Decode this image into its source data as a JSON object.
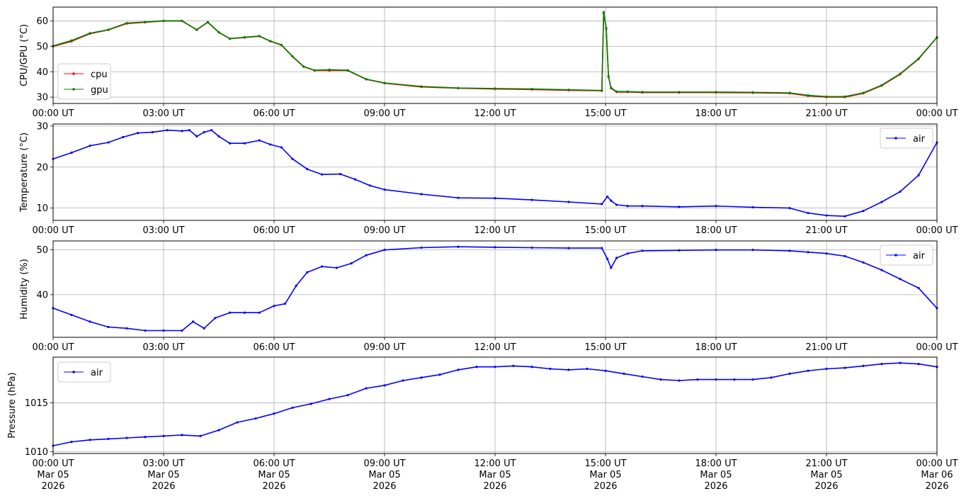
{
  "chart_data": [
    {
      "type": "line",
      "ylabel": "CPU/GPU (°C)",
      "ylim": [
        27.5,
        65.5
      ],
      "yticks": [
        30,
        40,
        50,
        60
      ],
      "x_tick_labels": [
        "00:00 UT",
        "03:00 UT",
        "06:00 UT",
        "09:00 UT",
        "12:00 UT",
        "15:00 UT",
        "18:00 UT",
        "21:00 UT",
        "00:00 UT"
      ],
      "grid": true,
      "legend_placement": "lower-left",
      "series": [
        {
          "name": "cpu",
          "color": "#ff0000",
          "x": [
            0,
            0.5,
            1,
            1.5,
            2,
            2.5,
            3,
            3.5,
            3.9,
            4.2,
            4.5,
            4.8,
            5.2,
            5.6,
            5.9,
            6.2,
            6.5,
            6.8,
            7.1,
            7.5,
            8,
            8.5,
            9,
            10,
            11,
            12,
            13,
            14,
            14.9,
            14.95,
            15.02,
            15.08,
            15.15,
            15.3,
            15.6,
            16,
            17,
            18,
            19,
            20,
            20.5,
            21,
            21.5,
            22,
            22.5,
            23,
            23.5,
            24
          ],
          "values": [
            50,
            52,
            55,
            56.5,
            59,
            59.5,
            60,
            60,
            56.5,
            59.5,
            55.5,
            53,
            53.5,
            54,
            52,
            50.5,
            46,
            42,
            40.5,
            40.5,
            40.5,
            37,
            35.5,
            34,
            33.5,
            33.2,
            33,
            32.7,
            32.5,
            63,
            57,
            38,
            33.5,
            32,
            32,
            31.8,
            31.8,
            31.8,
            31.7,
            31.5,
            30.5,
            30,
            30,
            31.5,
            34.5,
            39,
            45,
            53.5
          ]
        },
        {
          "name": "gpu",
          "color": "#008000",
          "x": [
            0,
            0.5,
            1,
            1.5,
            2,
            2.5,
            3,
            3.5,
            3.9,
            4.2,
            4.5,
            4.8,
            5.2,
            5.6,
            5.9,
            6.2,
            6.5,
            6.8,
            7.1,
            7.5,
            8,
            8.5,
            9,
            10,
            11,
            12,
            13,
            14,
            14.9,
            14.95,
            15.02,
            15.08,
            15.15,
            15.3,
            15.6,
            16,
            17,
            18,
            19,
            20,
            20.5,
            21,
            21.5,
            22,
            22.5,
            23,
            23.5,
            24
          ],
          "values": [
            50.2,
            52.3,
            55.2,
            56.6,
            59.2,
            59.6,
            60.1,
            60.1,
            56.6,
            59.6,
            55.6,
            53.1,
            53.6,
            54.1,
            52.1,
            50.6,
            46.1,
            42.1,
            40.6,
            40.8,
            40.6,
            37.1,
            35.6,
            34.2,
            33.6,
            33.4,
            33.2,
            32.9,
            32.6,
            63.5,
            57.2,
            38.2,
            33.7,
            32.2,
            32.2,
            32,
            32,
            32,
            31.9,
            31.7,
            30.7,
            30.2,
            30.2,
            31.7,
            34.7,
            39.2,
            45.2,
            53.6
          ]
        }
      ]
    },
    {
      "type": "line",
      "ylabel": "Temperature (°C)",
      "ylim": [
        7,
        30.5
      ],
      "yticks": [
        10,
        20,
        30
      ],
      "x_tick_labels": [
        "00:00 UT",
        "03:00 UT",
        "06:00 UT",
        "09:00 UT",
        "12:00 UT",
        "15:00 UT",
        "18:00 UT",
        "21:00 UT",
        "00:00 UT"
      ],
      "grid": true,
      "legend_placement": "upper-right",
      "series": [
        {
          "name": "air",
          "color": "#0000ff",
          "x": [
            0,
            0.5,
            1,
            1.5,
            1.9,
            2.3,
            2.7,
            3.1,
            3.5,
            3.7,
            3.9,
            4.1,
            4.3,
            4.5,
            4.8,
            5.2,
            5.6,
            5.9,
            6.2,
            6.5,
            6.9,
            7.3,
            7.8,
            8.2,
            8.6,
            9,
            10,
            11,
            12,
            13,
            14,
            14.9,
            15.05,
            15.15,
            15.3,
            15.6,
            16,
            17,
            18,
            19,
            20,
            20.5,
            21,
            21.5,
            22,
            22.5,
            23,
            23.5,
            24
          ],
          "values": [
            22,
            23.5,
            25.2,
            26,
            27.3,
            28.3,
            28.5,
            29,
            28.8,
            29,
            27.5,
            28.5,
            29,
            27.5,
            25.8,
            25.8,
            26.5,
            25.5,
            24.8,
            22,
            19.5,
            18.2,
            18.3,
            17,
            15.5,
            14.5,
            13.4,
            12.5,
            12.4,
            12,
            11.5,
            11,
            12.8,
            11.8,
            10.8,
            10.5,
            10.5,
            10.3,
            10.5,
            10.2,
            10,
            8.8,
            8.2,
            8,
            9.3,
            11.5,
            14,
            18,
            26
          ]
        }
      ]
    },
    {
      "type": "line",
      "ylabel": "Humidity (%)",
      "ylim": [
        30.5,
        52
      ],
      "yticks": [
        40,
        50
      ],
      "x_tick_labels": [
        "00:00 UT",
        "03:00 UT",
        "06:00 UT",
        "09:00 UT",
        "12:00 UT",
        "15:00 UT",
        "18:00 UT",
        "21:00 UT",
        "00:00 UT"
      ],
      "grid": true,
      "legend_placement": "upper-right",
      "series": [
        {
          "name": "air",
          "color": "#0000ff",
          "x": [
            0,
            0.5,
            1,
            1.5,
            2,
            2.5,
            3,
            3.5,
            3.8,
            4.1,
            4.4,
            4.8,
            5.2,
            5.6,
            6,
            6.3,
            6.6,
            6.9,
            7.3,
            7.7,
            8.1,
            8.5,
            9,
            10,
            11,
            12,
            13,
            14,
            14.9,
            15.05,
            15.15,
            15.3,
            15.6,
            16,
            17,
            18,
            19,
            20,
            20.5,
            21,
            21.5,
            22,
            22.5,
            23,
            23.5,
            24
          ],
          "values": [
            37,
            35.5,
            34,
            32.8,
            32.5,
            32,
            32,
            32,
            34,
            32.5,
            34.8,
            36,
            36,
            36,
            37.5,
            38,
            42,
            45,
            46.3,
            46,
            47,
            48.8,
            50,
            50.5,
            50.7,
            50.6,
            50.5,
            50.4,
            50.4,
            48,
            46,
            48.2,
            49.2,
            49.8,
            49.9,
            50,
            50,
            49.8,
            49.5,
            49.2,
            48.6,
            47.2,
            45.5,
            43.5,
            41.5,
            37
          ]
        }
      ]
    },
    {
      "type": "line",
      "ylabel": "Pressure (hPa)",
      "ylim": [
        1009.8,
        1019.7
      ],
      "yticks": [
        1010,
        1015
      ],
      "x_tick_labels": [
        "00:00 UT\nMar 05\n2026",
        "03:00 UT\nMar 05\n2026",
        "06:00 UT\nMar 05\n2026",
        "09:00 UT\nMar 05\n2026",
        "12:00 UT\nMar 05\n2026",
        "15:00 UT\nMar 05\n2026",
        "18:00 UT\nMar 05\n2026",
        "21:00 UT\nMar 05\n2026",
        "00:00 UT\nMar 06\n2026"
      ],
      "grid": true,
      "legend_placement": "upper-left",
      "series": [
        {
          "name": "air",
          "color": "#0000ff",
          "x": [
            0,
            0.5,
            1,
            1.5,
            2,
            2.5,
            3,
            3.5,
            4,
            4.5,
            5,
            5.5,
            6,
            6.5,
            7,
            7.5,
            8,
            8.5,
            9,
            9.5,
            10,
            10.5,
            11,
            11.5,
            12,
            12.5,
            13,
            13.5,
            14,
            14.5,
            15,
            15.5,
            16,
            16.5,
            17,
            17.5,
            18,
            18.5,
            19,
            19.5,
            20,
            20.5,
            21,
            21.5,
            22,
            22.5,
            23,
            23.5,
            24
          ],
          "values": [
            1010.6,
            1011,
            1011.2,
            1011.3,
            1011.4,
            1011.5,
            1011.6,
            1011.7,
            1011.6,
            1012.2,
            1013,
            1013.4,
            1013.9,
            1014.5,
            1014.9,
            1015.4,
            1015.8,
            1016.5,
            1016.8,
            1017.3,
            1017.6,
            1017.9,
            1018.4,
            1018.7,
            1018.7,
            1018.8,
            1018.7,
            1018.5,
            1018.4,
            1018.5,
            1018.3,
            1018,
            1017.7,
            1017.4,
            1017.3,
            1017.4,
            1017.4,
            1017.4,
            1017.4,
            1017.6,
            1018,
            1018.3,
            1018.5,
            1018.6,
            1018.8,
            1019,
            1019.1,
            1019,
            1018.7
          ]
        }
      ]
    }
  ]
}
